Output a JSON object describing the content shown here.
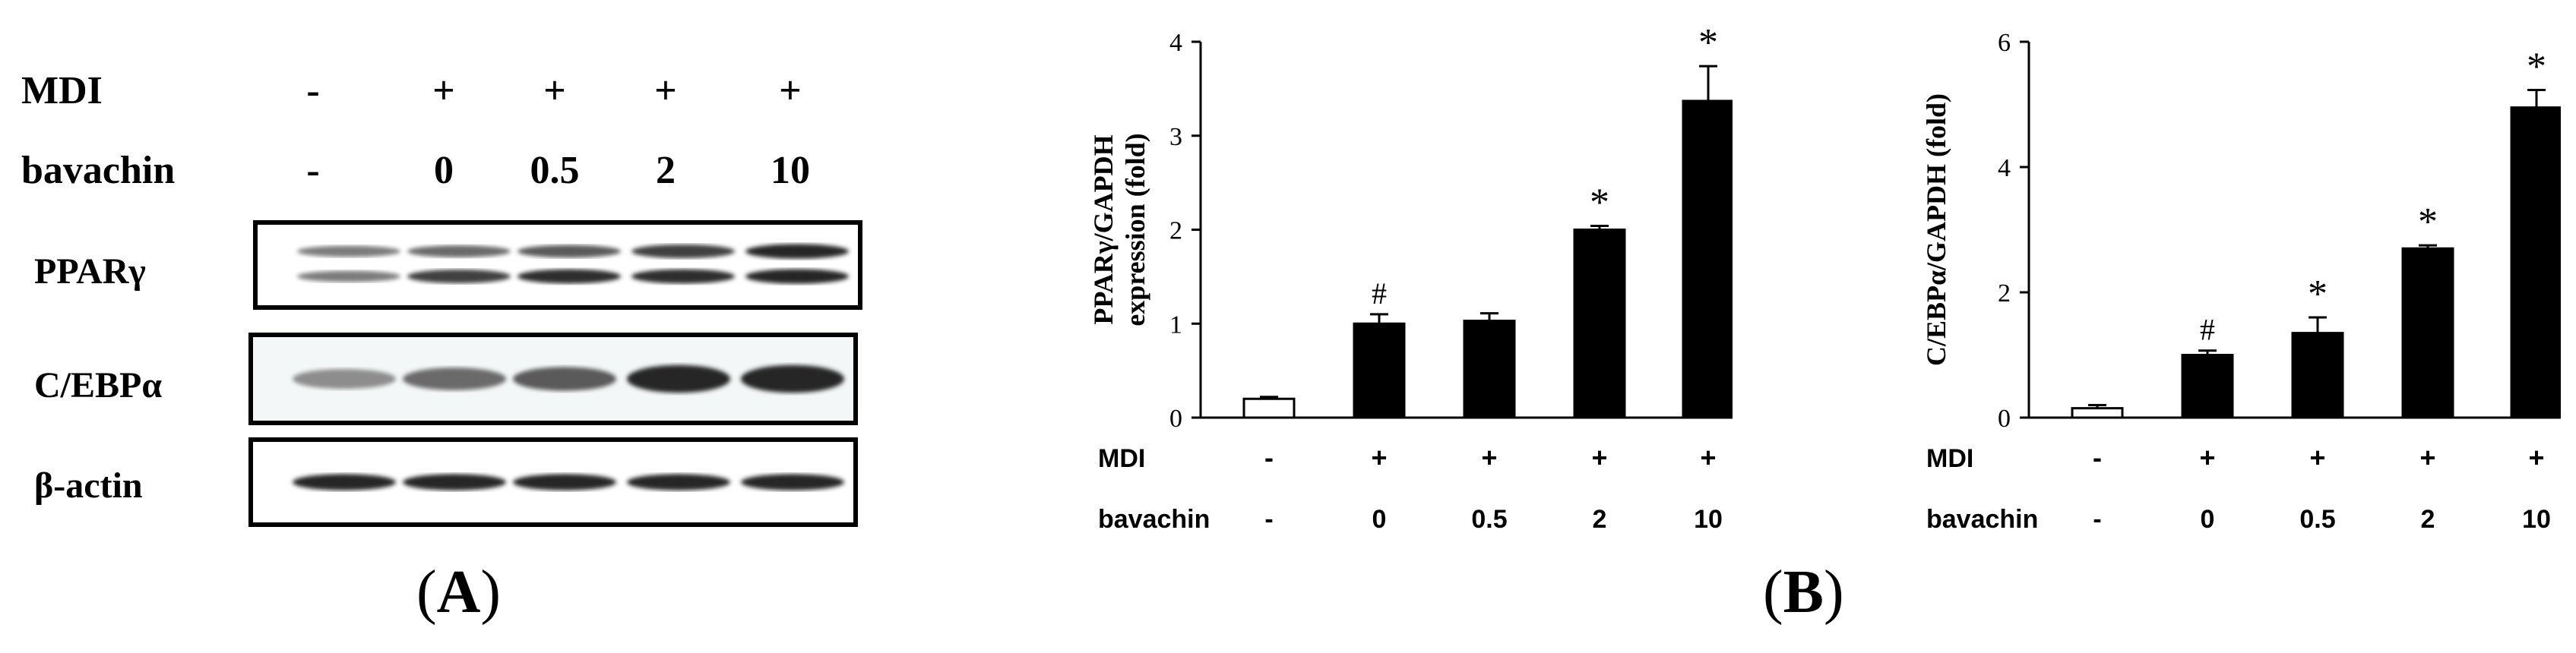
{
  "panel_a": {
    "row_labels": {
      "mdi": "MDI",
      "bavachin": "bavachin"
    },
    "mdi": [
      "-",
      "+",
      "+",
      "+",
      "+"
    ],
    "bavachin": [
      "-",
      "0",
      "0.5",
      "2",
      "10"
    ],
    "blots": [
      {
        "label": "PPARγ",
        "band_intensity_upper": [
          0.45,
          0.55,
          0.65,
          0.8,
          0.95
        ],
        "band_intensity_lower": [
          0.45,
          0.8,
          0.9,
          0.9,
          0.95
        ]
      },
      {
        "label": "C/EBPα",
        "band_intensity": [
          0.35,
          0.55,
          0.65,
          0.95,
          0.95
        ]
      },
      {
        "label": "β-actin",
        "band_intensity": [
          0.95,
          0.95,
          0.95,
          0.95,
          0.95
        ]
      }
    ],
    "letter": {
      "open": "(",
      "letter": "A",
      "close": ")"
    }
  },
  "panel_b_letter": {
    "open": "(",
    "letter": "B",
    "close": ")"
  },
  "chart_data": [
    {
      "type": "bar",
      "ylabel_line1": "PPARγ/GAPDH",
      "ylabel_line2": "expression (fold)",
      "ylim": [
        0,
        4
      ],
      "yticks": [
        "0",
        "1",
        "2",
        "3",
        "4"
      ],
      "categories": [
        "1",
        "2",
        "3",
        "4",
        "5"
      ],
      "values": [
        0.2,
        1.0,
        1.03,
        2.0,
        3.37
      ],
      "errors": [
        0.02,
        0.1,
        0.08,
        0.04,
        0.37
      ],
      "fills": [
        "#ffffff",
        "#000000",
        "#000000",
        "#000000",
        "#000000"
      ],
      "annotations": [
        "",
        "#",
        "",
        "*",
        "*"
      ],
      "row_labels": {
        "mdi": "MDI",
        "bavachin": "bavachin"
      },
      "mdi": [
        "-",
        "+",
        "+",
        "+",
        "+"
      ],
      "bavachin": [
        "-",
        "0",
        "0.5",
        "2",
        "10"
      ],
      "grid": false
    },
    {
      "type": "bar",
      "ylabel_line1": "C/EBPα/GAPDH (fold)",
      "ylabel_line2": "",
      "ylim": [
        0,
        6
      ],
      "yticks": [
        "0",
        "2",
        "4",
        "6"
      ],
      "categories": [
        "1",
        "2",
        "3",
        "4",
        "5"
      ],
      "values": [
        0.15,
        1.0,
        1.35,
        2.7,
        4.95
      ],
      "errors": [
        0.05,
        0.07,
        0.25,
        0.05,
        0.28
      ],
      "fills": [
        "#ffffff",
        "#000000",
        "#000000",
        "#000000",
        "#000000"
      ],
      "annotations": [
        "",
        "#",
        "*",
        "*",
        "*"
      ],
      "row_labels": {
        "mdi": "MDI",
        "bavachin": "bavachin"
      },
      "mdi": [
        "-",
        "+",
        "+",
        "+",
        "+"
      ],
      "bavachin": [
        "-",
        "0",
        "0.5",
        "2",
        "10"
      ],
      "grid": false
    }
  ]
}
